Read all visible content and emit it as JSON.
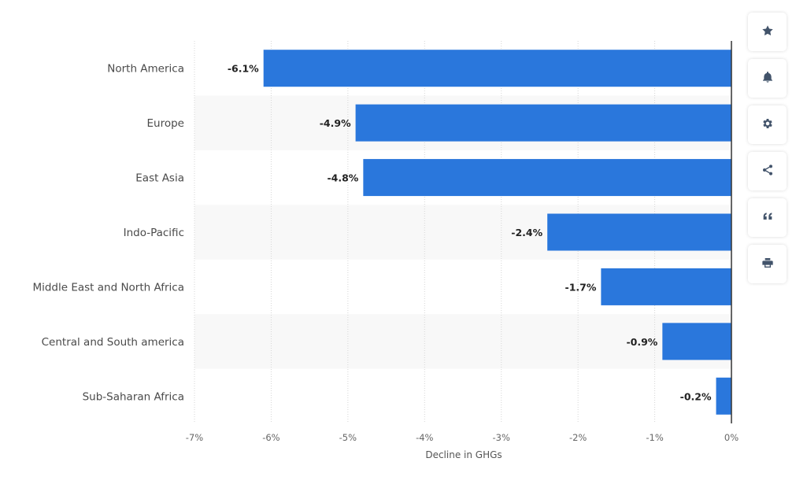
{
  "chart_data": {
    "type": "bar",
    "orientation": "horizontal",
    "categories": [
      "North America",
      "Europe",
      "East Asia",
      "Indo-Pacific",
      "Middle East and North Africa",
      "Central and South america",
      "Sub-Saharan Africa"
    ],
    "values": [
      -6.1,
      -4.9,
      -4.8,
      -2.4,
      -1.7,
      -0.9,
      -0.2
    ],
    "value_labels": [
      "-6.1%",
      "-4.9%",
      "-4.8%",
      "-2.4%",
      "-1.7%",
      "-0.9%",
      "-0.2%"
    ],
    "xlim": [
      -7,
      0
    ],
    "ticks": [
      -7,
      -6,
      -5,
      -4,
      -3,
      -2,
      -1,
      0
    ],
    "tick_labels": [
      "-7%",
      "-6%",
      "-5%",
      "-4%",
      "-3%",
      "-2%",
      "-1%",
      "0%"
    ],
    "xlabel": "Decline in GHGs",
    "ylabel": "",
    "title": "",
    "grid": true,
    "bar_color": "#2a77dc",
    "band_color": "#f8f8f8",
    "grid_color": "#d6d6d6",
    "axis_color": "#333333"
  },
  "toolbar": {
    "buttons": [
      {
        "name": "favorite-button",
        "icon": "star-icon"
      },
      {
        "name": "notification-button",
        "icon": "bell-icon"
      },
      {
        "name": "settings-button",
        "icon": "gear-icon"
      },
      {
        "name": "share-button",
        "icon": "share-icon"
      },
      {
        "name": "cite-button",
        "icon": "quote-icon"
      },
      {
        "name": "print-button",
        "icon": "print-icon"
      }
    ]
  }
}
